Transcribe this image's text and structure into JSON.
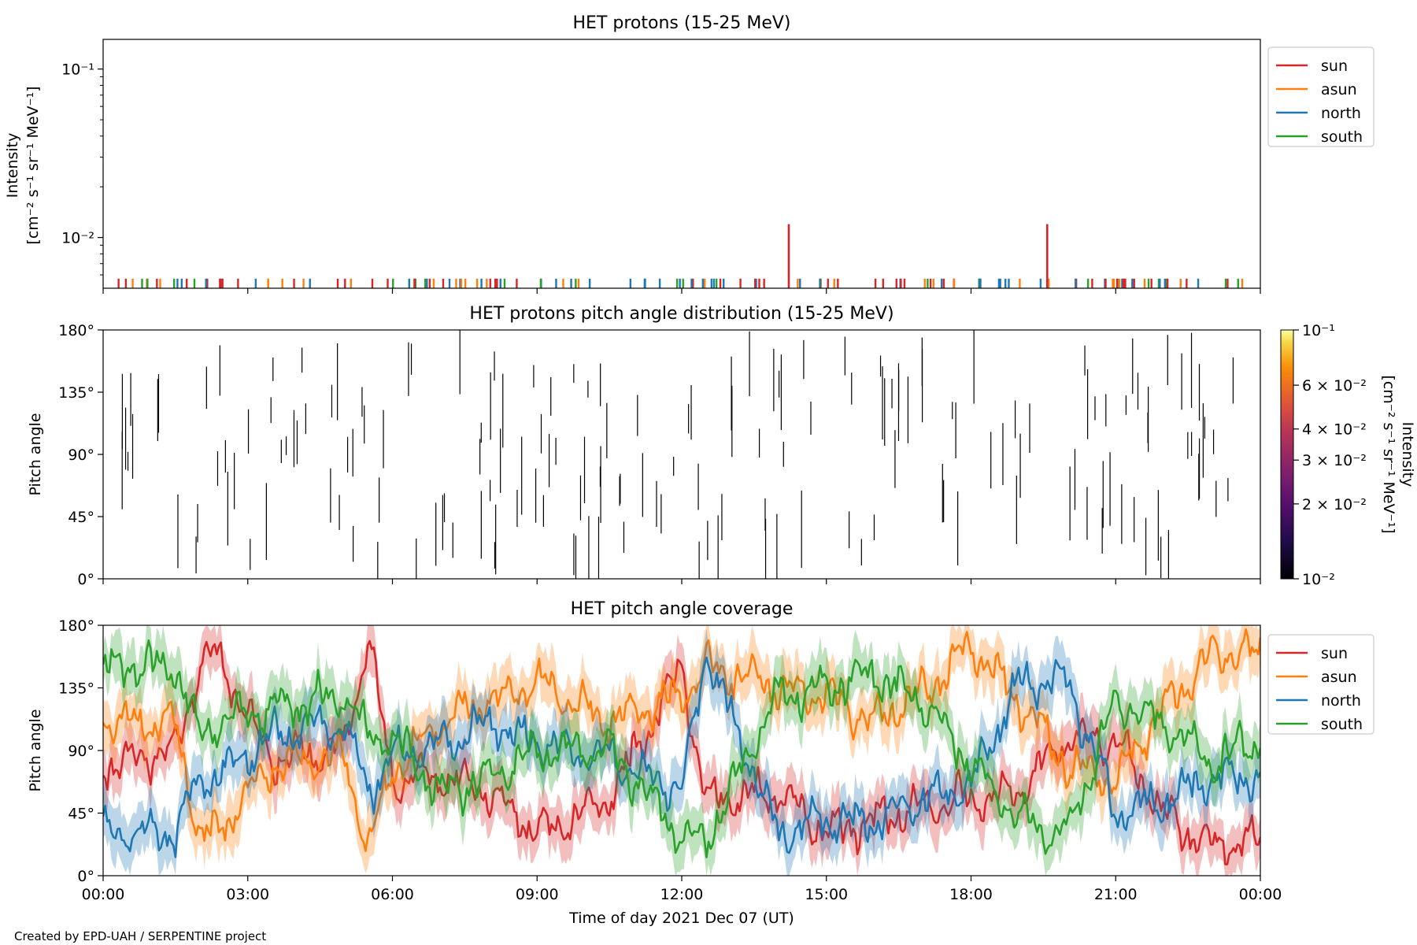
{
  "footer": "Created by EPD-UAH / SERPENTINE project",
  "colors": {
    "sun": "#d62728",
    "asun": "#ff7f0e",
    "north": "#1f77b4",
    "south": "#2ca02c"
  },
  "chart_data": [
    {
      "type": "line",
      "title": "HET protons (15-25 MeV)",
      "ylabel_line1": "Intensity",
      "ylabel_line2": "[cm⁻² s⁻¹ sr⁻¹ MeV⁻¹]",
      "yscale": "log",
      "ylim": [
        0.005,
        0.15
      ],
      "yticks": [
        {
          "v": 0.1,
          "label": "10⁻¹"
        },
        {
          "v": 0.01,
          "label": "10⁻²"
        }
      ],
      "xlim_hours": [
        0,
        24
      ],
      "legend": {
        "placement": "outside-right-top",
        "entries": [
          "sun",
          "asun",
          "north",
          "south"
        ]
      },
      "spikes": [
        {
          "series": "sun",
          "t": 14.22,
          "value": 0.012
        },
        {
          "series": "sun",
          "t": 19.58,
          "value": 0.012
        }
      ],
      "baseline_marks": "many short spikes at detection floor (~0.0057) from all four sectors throughout the day"
    },
    {
      "type": "heatmap",
      "title": "HET protons pitch angle distribution (15-25 MeV)",
      "ylabel": "Pitch angle",
      "ylim": [
        0,
        180
      ],
      "yticks": [
        "0°",
        "45°",
        "90°",
        "135°",
        "180°"
      ],
      "xlim_hours": [
        0,
        24
      ],
      "colorbar": {
        "scale": "log",
        "range": [
          0.01,
          0.1
        ],
        "label_line1": "Intensity",
        "label_line2": "[cm⁻² s⁻¹ sr⁻¹ MeV⁻¹]",
        "ticks": [
          {
            "v": 0.1,
            "label": "10⁻¹"
          },
          {
            "v": 0.06,
            "label": "6 × 10⁻²"
          },
          {
            "v": 0.04,
            "label": "4 × 10⁻²"
          },
          {
            "v": 0.03,
            "label": "3 × 10⁻²"
          },
          {
            "v": 0.02,
            "label": "2 × 10⁻²"
          },
          {
            "v": 0.01,
            "label": "10⁻²"
          }
        ]
      }
    },
    {
      "type": "line",
      "title": "HET pitch angle coverage",
      "ylabel": "Pitch angle",
      "xlabel": "Time of day 2021 Dec 07 (UT)",
      "ylim": [
        0,
        180
      ],
      "yticks": [
        "0°",
        "45°",
        "90°",
        "135°",
        "180°"
      ],
      "xticks": [
        "00:00",
        "03:00",
        "06:00",
        "09:00",
        "12:00",
        "15:00",
        "18:00",
        "21:00",
        "00:00"
      ],
      "legend": {
        "placement": "outside-right-top",
        "entries": [
          "sun",
          "asun",
          "north",
          "south"
        ]
      },
      "series_anchor_hours": [
        0,
        1.5,
        2,
        2.3,
        3.5,
        5,
        5.5,
        6,
        7,
        8,
        9,
        10.5,
        12,
        12.5,
        14,
        15,
        16,
        17,
        18,
        19,
        20,
        21,
        22,
        23,
        24
      ],
      "series": [
        {
          "name": "sun",
          "values": [
            80,
            90,
            150,
            160,
            85,
            90,
            170,
            70,
            70,
            60,
            30,
            55,
            150,
            55,
            60,
            30,
            40,
            50,
            55,
            60,
            100,
            95,
            45,
            20,
            25
          ]
        },
        {
          "name": "asun",
          "values": [
            110,
            110,
            30,
            30,
            80,
            85,
            20,
            75,
            110,
            125,
            140,
            110,
            130,
            150,
            135,
            130,
            110,
            130,
            165,
            125,
            80,
            70,
            120,
            160,
            160
          ]
        },
        {
          "name": "north",
          "values": [
            30,
            30,
            70,
            70,
            100,
            110,
            60,
            85,
            95,
            110,
            95,
            85,
            60,
            160,
            30,
            40,
            40,
            55,
            65,
            140,
            140,
            45,
            55,
            70,
            70
          ]
        },
        {
          "name": "south",
          "values": [
            150,
            150,
            100,
            110,
            120,
            130,
            100,
            100,
            60,
            70,
            90,
            90,
            30,
            25,
            130,
            135,
            145,
            125,
            80,
            40,
            30,
            125,
            110,
            80,
            100
          ]
        }
      ]
    }
  ]
}
